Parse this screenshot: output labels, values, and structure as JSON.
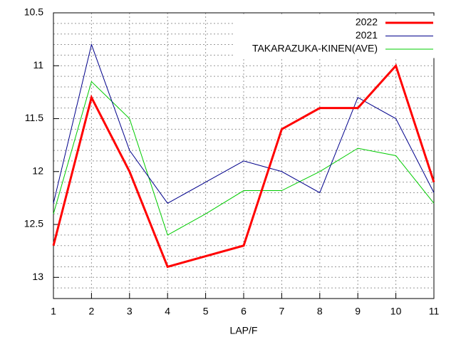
{
  "chart_data": {
    "type": "line",
    "xlabel": "LAP/F",
    "x": [
      1,
      2,
      3,
      4,
      5,
      6,
      7,
      8,
      9,
      10,
      11
    ],
    "series": [
      {
        "name": "2022",
        "color": "#ff0000",
        "width": 3,
        "values": [
          12.7,
          11.3,
          12.0,
          12.9,
          12.8,
          12.7,
          11.6,
          11.4,
          11.4,
          11.0,
          12.1
        ]
      },
      {
        "name": "2021",
        "color": "#00008b",
        "width": 1,
        "values": [
          12.3,
          10.8,
          11.8,
          12.3,
          12.1,
          11.9,
          12.0,
          12.2,
          11.3,
          11.5,
          12.2
        ]
      },
      {
        "name": "TAKARAZUKA-KINEN(AVE)",
        "color": "#00cc00",
        "width": 1,
        "values": [
          12.4,
          11.15,
          11.5,
          12.6,
          12.4,
          12.18,
          12.18,
          12.0,
          11.78,
          11.85,
          12.3
        ]
      }
    ],
    "xlim": [
      1,
      11
    ],
    "xticks": [
      1,
      2,
      3,
      4,
      5,
      6,
      7,
      8,
      9,
      10,
      11
    ],
    "ylim": [
      10.5,
      13.2
    ],
    "y_reversed": true,
    "yticks": [
      10.5,
      11,
      11.5,
      12,
      12.5,
      13
    ],
    "y_minor_gridlines": [
      10.6,
      10.7,
      10.8,
      10.9,
      11.1,
      11.2,
      11.3,
      11.4,
      11.6,
      11.7,
      11.8,
      11.9,
      12.1,
      12.2,
      12.3,
      12.4,
      12.6,
      12.7,
      12.8,
      12.9,
      13.1
    ],
    "grid": true,
    "legend": "top-right"
  }
}
